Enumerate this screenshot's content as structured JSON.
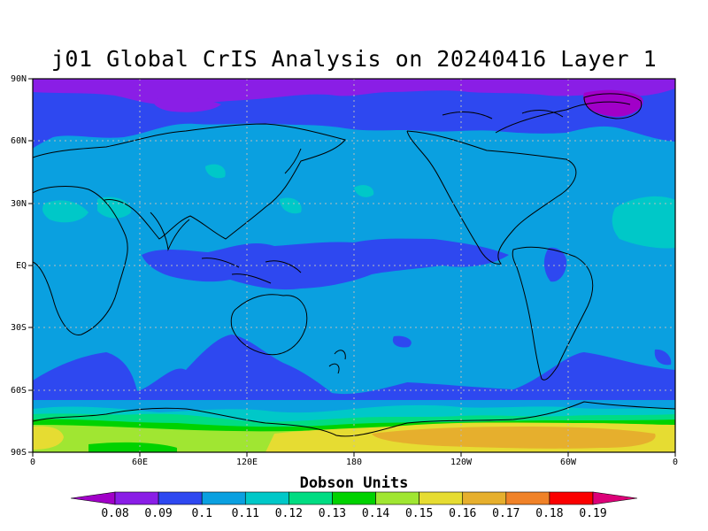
{
  "title": "j01 Global CrIS Analysis on 20240416 Layer 1",
  "map": {
    "lat_ticks": [
      "90N",
      "60N",
      "30N",
      "EQ",
      "30S",
      "60S",
      "90S"
    ],
    "lon_ticks": [
      "0",
      "60E",
      "120E",
      "180",
      "120W",
      "60W",
      "0"
    ],
    "gridlines": true,
    "background_level": "0.1-0.11",
    "features": [
      {
        "name": "arctic-low",
        "level": "0.08-0.09"
      },
      {
        "name": "tropical-band",
        "level": "0.09-0.1"
      },
      {
        "name": "southern-ocean-band",
        "level": "0.09-0.1"
      },
      {
        "name": "antarctic-high",
        "level": "0.14-0.17"
      }
    ]
  },
  "colorbar": {
    "title": "Dobson Units",
    "labels": [
      "0.08",
      "0.09",
      "0.1",
      "0.11",
      "0.12",
      "0.13",
      "0.14",
      "0.15",
      "0.16",
      "0.17",
      "0.18",
      "0.19"
    ],
    "colors": [
      "#a100c8",
      "#8a1ee6",
      "#2e48f0",
      "#0aa0e0",
      "#00c8c8",
      "#00dc82",
      "#00d200",
      "#a0e632",
      "#e6dc32",
      "#e6af2d",
      "#f08228",
      "#fa0000",
      "#dc0078"
    ]
  }
}
